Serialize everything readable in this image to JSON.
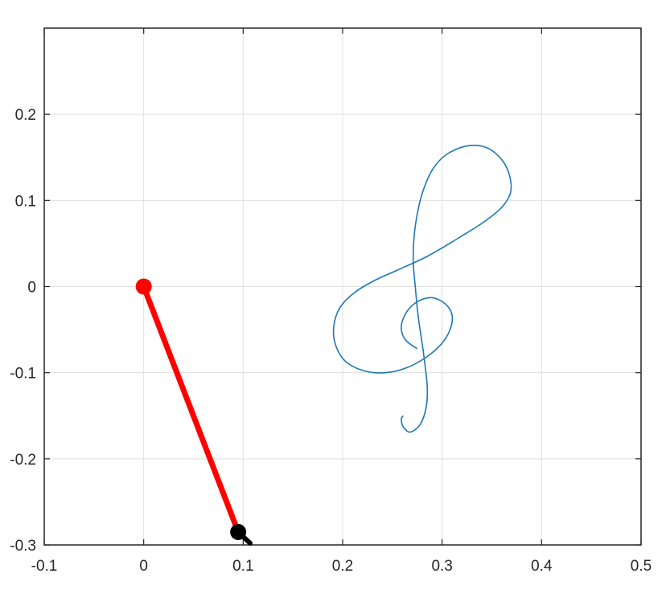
{
  "chart_data": {
    "type": "line",
    "title": "",
    "xlabel": "",
    "ylabel": "",
    "xlim": [
      -0.1,
      0.5
    ],
    "ylim": [
      -0.3,
      0.3
    ],
    "grid": true,
    "x_ticks": [
      "-0.1",
      "0",
      "0.1",
      "0.2",
      "0.3",
      "0.4",
      "0.5"
    ],
    "y_ticks": [
      "-0.3",
      "-0.2",
      "-0.1",
      "0",
      "0.1",
      "0.2"
    ],
    "x_tick_values": [
      -0.1,
      0,
      0.1,
      0.2,
      0.3,
      0.4,
      0.5
    ],
    "y_tick_values": [
      -0.3,
      -0.2,
      -0.1,
      0,
      0.1,
      0.2
    ],
    "colors": {
      "trace": "#1f77b4",
      "link": "#ff0000",
      "base_joint": "#ff0000",
      "end_effector": "#000000",
      "grid": "#e0e0e0",
      "axes": "#262626"
    },
    "series": [
      {
        "points": [
          [
            0.275,
            -0.072
          ],
          [
            0.268,
            -0.067
          ],
          [
            0.262,
            -0.06
          ],
          [
            0.259,
            -0.05
          ],
          [
            0.26,
            -0.04
          ],
          [
            0.266,
            -0.027
          ],
          [
            0.276,
            -0.017
          ],
          [
            0.29,
            -0.013
          ],
          [
            0.303,
            -0.02
          ],
          [
            0.31,
            -0.033
          ],
          [
            0.308,
            -0.05
          ],
          [
            0.299,
            -0.067
          ],
          [
            0.284,
            -0.082
          ],
          [
            0.265,
            -0.094
          ],
          [
            0.243,
            -0.1
          ],
          [
            0.222,
            -0.098
          ],
          [
            0.203,
            -0.087
          ],
          [
            0.193,
            -0.068
          ],
          [
            0.191,
            -0.047
          ],
          [
            0.197,
            -0.025
          ],
          [
            0.212,
            -0.007
          ],
          [
            0.232,
            0.007
          ],
          [
            0.255,
            0.019
          ],
          [
            0.285,
            0.035
          ],
          [
            0.316,
            0.056
          ],
          [
            0.342,
            0.075
          ],
          [
            0.36,
            0.092
          ],
          [
            0.369,
            0.11
          ],
          [
            0.367,
            0.132
          ],
          [
            0.358,
            0.15
          ],
          [
            0.343,
            0.162
          ],
          [
            0.324,
            0.163
          ],
          [
            0.304,
            0.153
          ],
          [
            0.291,
            0.137
          ],
          [
            0.282,
            0.115
          ],
          [
            0.276,
            0.09
          ],
          [
            0.272,
            0.06
          ],
          [
            0.271,
            0.03
          ],
          [
            0.273,
            0.0
          ],
          [
            0.276,
            -0.035
          ],
          [
            0.281,
            -0.075
          ],
          [
            0.285,
            -0.115
          ],
          [
            0.284,
            -0.14
          ],
          [
            0.278,
            -0.16
          ],
          [
            0.268,
            -0.169
          ],
          [
            0.261,
            -0.163
          ],
          [
            0.259,
            -0.154
          ],
          [
            0.261,
            -0.15
          ]
        ]
      }
    ],
    "arm": {
      "base": [
        0.0,
        0.0
      ],
      "end_effector": [
        0.095,
        -0.285
      ],
      "end_stub_tip": [
        0.107,
        -0.298
      ]
    }
  }
}
